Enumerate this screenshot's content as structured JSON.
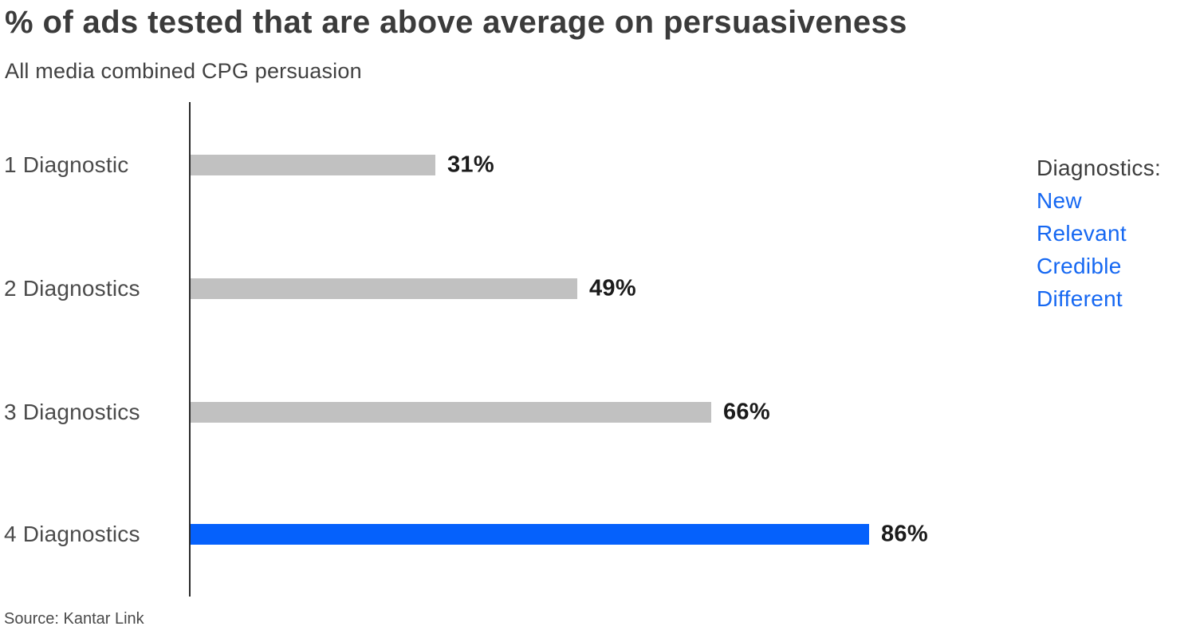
{
  "title": "% of ads tested that are above average on persuasiveness",
  "subtitle": "All media combined CPG persuasion",
  "source": "Source: Kantar Link",
  "legend": {
    "header": "Diagnostics:",
    "items": [
      "New",
      "Relevant",
      "Credible",
      "Different"
    ],
    "item_color": "#1668f2"
  },
  "colors": {
    "bar_default": "#c1c1c1",
    "bar_highlight": "#0561fc",
    "axis": "#2a2a2a"
  },
  "chart_data": {
    "type": "bar",
    "orientation": "horizontal",
    "title": "% of ads tested that are above average on persuasiveness",
    "subtitle": "All media combined CPG persuasion",
    "categories": [
      "1 Diagnostic",
      "2 Diagnostics",
      "3 Diagnostics",
      "4 Diagnostics"
    ],
    "values": [
      31,
      49,
      66,
      86
    ],
    "value_labels": [
      "31%",
      "49%",
      "66%",
      "86%"
    ],
    "highlight_index": 3,
    "xlabel": "",
    "ylabel": "",
    "xlim": [
      0,
      100
    ],
    "grid": false,
    "legend_position": "right",
    "source": "Source: Kantar Link"
  }
}
